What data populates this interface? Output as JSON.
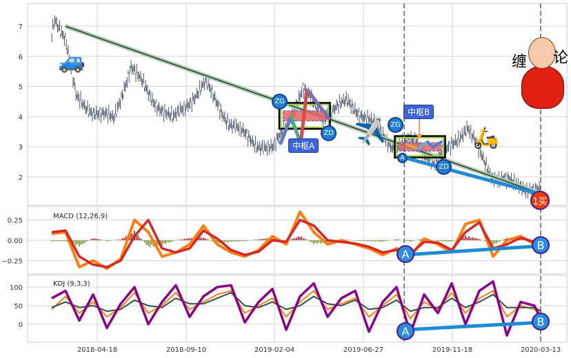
{
  "chart_data": [
    {
      "type": "line",
      "panel": "price",
      "x_ticks": [
        "2018-04-18",
        "2018-09-10",
        "2019-02-04",
        "2019-06-27",
        "2019-11-18",
        "2020-03-13"
      ],
      "y_ticks": [
        2,
        3,
        4,
        5,
        6,
        7
      ],
      "ylim": [
        1.2,
        7.7
      ],
      "grid": true,
      "price_points": [
        [
          "2018-02-03",
          6.8
        ],
        [
          "2018-02-08",
          7.3
        ],
        [
          "2018-02-25",
          6.6
        ],
        [
          "2018-03-15",
          4.6
        ],
        [
          "2018-04-01",
          4.3
        ],
        [
          "2018-05-15",
          3.9
        ],
        [
          "2018-06-12",
          5.7
        ],
        [
          "2018-07-15",
          4.6
        ],
        [
          "2018-08-20",
          3.9
        ],
        [
          "2018-10-12",
          5.1
        ],
        [
          "2018-11-20",
          3.8
        ],
        [
          "2019-01-05",
          3.1
        ],
        [
          "2019-02-01",
          2.9
        ],
        [
          "2019-02-25",
          3.8
        ],
        [
          "2019-03-22",
          4.9
        ],
        [
          "2019-04-22",
          4.0
        ],
        [
          "2019-06-01",
          4.5
        ],
        [
          "2019-07-10",
          3.8
        ],
        [
          "2019-08-15",
          3.0
        ],
        [
          "2019-09-20",
          3.2
        ],
        [
          "2019-10-20",
          2.4
        ],
        [
          "2019-11-20",
          3.2
        ],
        [
          "2019-12-08",
          3.6
        ],
        [
          "2020-01-10",
          2.0
        ],
        [
          "2020-03-13",
          1.5
        ]
      ],
      "trend_line": [
        [
          "2018-02-25",
          7.0
        ],
        [
          "2020-03-13",
          1.45
        ]
      ],
      "divergence_line": [
        [
          "2019-09-01",
          2.64
        ],
        [
          "2020-03-13",
          1.43
        ]
      ],
      "dashed_verticals": [
        "2019-09-01",
        "2020-03-13"
      ],
      "zhongshu": [
        {
          "label": "中枢A",
          "zg_label": "ZG",
          "zd_label": "ZD",
          "start": "2019-02-12",
          "end": "2019-05-04",
          "zg": 4.45,
          "zd": 3.6
        },
        {
          "label": "中枢B",
          "zg_label": "ZG",
          "zd_label": "ZD",
          "start": "2019-08-17",
          "end": "2019-11-06",
          "zg": 3.35,
          "zd": 2.65
        }
      ],
      "point_labels": {
        "a": "A",
        "buy1": "1买"
      },
      "logo_text": [
        "缠",
        "论"
      ],
      "icons": [
        "car-icon",
        "airplane-icon",
        "scooter-icon",
        "buddha-icon"
      ]
    },
    {
      "type": "line",
      "panel": "macd",
      "title": "MACD (12,26,9)",
      "y_ticks": [
        "0.25",
        "0.00",
        "−0.25"
      ],
      "ylim": [
        -0.42,
        0.42
      ],
      "dates": [
        "2018-02-03",
        "2018-02-25",
        "2018-03-19",
        "2018-04-10",
        "2018-05-03",
        "2018-05-25",
        "2018-06-16",
        "2018-07-09",
        "2018-07-31",
        "2018-08-22",
        "2018-09-13",
        "2018-10-06",
        "2018-10-30",
        "2018-11-21",
        "2018-12-14",
        "2019-01-05",
        "2019-01-27",
        "2019-02-15",
        "2019-03-09",
        "2019-03-31",
        "2019-04-22",
        "2019-05-14",
        "2019-06-05",
        "2019-07-06",
        "2019-07-28",
        "2019-08-19",
        "2019-09-10",
        "2019-10-02",
        "2019-10-24",
        "2019-11-15",
        "2019-12-03",
        "2019-12-21",
        "2020-01-08",
        "2020-01-26",
        "2020-02-13",
        "2020-03-02",
        "2020-03-13"
      ],
      "series": [
        {
          "color": "#ff7f0e",
          "values": [
            0.08,
            0.1,
            -0.33,
            -0.25,
            -0.35,
            -0.23,
            0.25,
            0.1,
            -0.2,
            -0.15,
            -0.05,
            0.18,
            -0.05,
            -0.15,
            -0.2,
            -0.12,
            0.05,
            -0.05,
            0.35,
            0.1,
            -0.05,
            0.0,
            -0.05,
            -0.1,
            -0.18,
            -0.1,
            -0.2,
            0.02,
            -0.05,
            -0.15,
            0.2,
            0.25,
            -0.2,
            0.0,
            0.05,
            -0.05,
            -0.08
          ]
        },
        {
          "color": "#d62728",
          "values": [
            0.1,
            0.12,
            -0.2,
            -0.3,
            -0.33,
            -0.25,
            0.05,
            0.25,
            -0.1,
            -0.15,
            -0.1,
            0.12,
            0.02,
            -0.12,
            -0.18,
            -0.14,
            0.0,
            -0.02,
            0.25,
            0.18,
            0.0,
            -0.02,
            -0.04,
            -0.08,
            -0.15,
            -0.12,
            -0.17,
            -0.02,
            -0.03,
            -0.12,
            0.1,
            0.22,
            -0.1,
            -0.05,
            0.03,
            -0.02,
            -0.06
          ]
        }
      ],
      "histogram_colors": {
        "positive": "#a32020",
        "negative": "#6b8e23"
      },
      "divergence": {
        "from_label": "A",
        "to_label": "B",
        "from": [
          "2019-09-01",
          -0.18
        ],
        "to": [
          "2020-03-13",
          -0.07
        ]
      }
    },
    {
      "type": "line",
      "panel": "kdj",
      "title": "KDJ (9,3,3)",
      "y_ticks": [
        "100",
        "50",
        "0"
      ],
      "ylim": [
        -45,
        130
      ],
      "series": [
        {
          "color": "#ff7f0e",
          "values": [
            40,
            75,
            30,
            60,
            20,
            45,
            85,
            30,
            50,
            85,
            40,
            60,
            80,
            90,
            30,
            50,
            70,
            20,
            60,
            90,
            40,
            55,
            70,
            20,
            50,
            80,
            15,
            60,
            40,
            85,
            30,
            70,
            90,
            20,
            50,
            40,
            30
          ]
        },
        {
          "color": "#2f4f4f",
          "values": [
            45,
            60,
            45,
            50,
            35,
            40,
            65,
            50,
            45,
            70,
            55,
            55,
            70,
            85,
            50,
            45,
            60,
            40,
            50,
            75,
            55,
            50,
            65,
            40,
            45,
            65,
            35,
            45,
            45,
            70,
            45,
            60,
            80,
            45,
            45,
            45,
            35
          ]
        },
        {
          "color": "#8b008b",
          "values": [
            70,
            90,
            10,
            80,
            -10,
            55,
            100,
            0,
            60,
            105,
            20,
            75,
            100,
            105,
            5,
            60,
            95,
            -15,
            75,
            110,
            20,
            70,
            90,
            -20,
            60,
            100,
            -25,
            80,
            30,
            110,
            0,
            90,
            115,
            -30,
            60,
            50,
            10
          ]
        }
      ],
      "divergence": {
        "from_label": "A",
        "to_label": "B",
        "from": [
          "2019-09-01",
          -15
        ],
        "to": [
          "2020-03-13",
          5
        ]
      }
    }
  ]
}
